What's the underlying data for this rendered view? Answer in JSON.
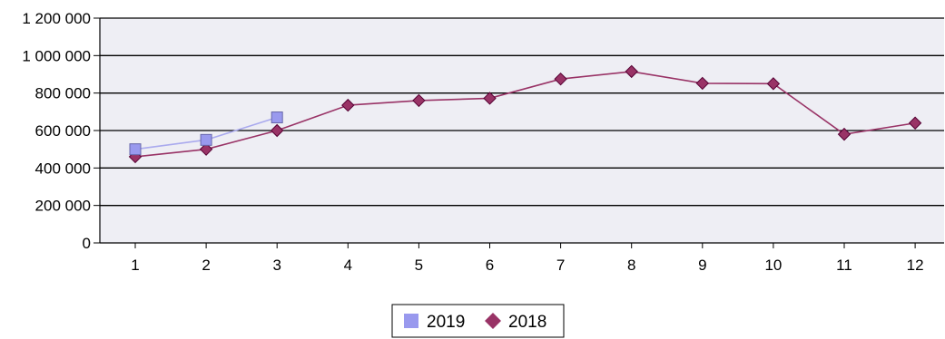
{
  "chart_data": {
    "type": "line",
    "x": [
      1,
      2,
      3,
      4,
      5,
      6,
      7,
      8,
      9,
      10,
      11,
      12
    ],
    "x_tick_labels": [
      "1",
      "2",
      "3",
      "4",
      "5",
      "6",
      "7",
      "8",
      "9",
      "10",
      "11",
      "12"
    ],
    "ylim": [
      0,
      1200000
    ],
    "y_ticks": [
      0,
      200000,
      400000,
      600000,
      800000,
      1000000,
      1200000
    ],
    "y_tick_labels": [
      "0",
      "200 000",
      "400 000",
      "600 000",
      "800 000",
      "1 000 000",
      "1 200 000"
    ],
    "grid": "horizontal",
    "plot_background": "#eeeef4",
    "legend_position": "bottom-center",
    "series": [
      {
        "name": "2019",
        "marker": "square",
        "line_color": "#aaaaee",
        "marker_fill": "#9999ee",
        "marker_stroke": "#6666aa",
        "x": [
          1,
          2,
          3
        ],
        "values": [
          500000,
          550000,
          670000
        ]
      },
      {
        "name": "2018",
        "marker": "diamond",
        "line_color": "#993366",
        "marker_fill": "#993366",
        "marker_stroke": "#550033",
        "x": [
          1,
          2,
          3,
          4,
          5,
          6,
          7,
          8,
          9,
          10,
          11,
          12
        ],
        "values": [
          460000,
          500000,
          600000,
          735000,
          760000,
          772000,
          875000,
          915000,
          852000,
          850000,
          580000,
          640000
        ]
      }
    ]
  }
}
